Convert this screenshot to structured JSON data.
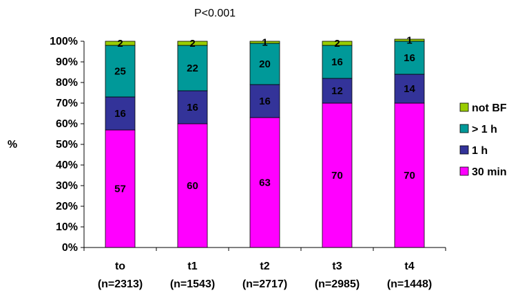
{
  "chart_data": {
    "type": "bar",
    "stacked": true,
    "title": "P<0.001",
    "ylabel": "%",
    "xlabel": "",
    "ylim": [
      0,
      100
    ],
    "yticks": [
      "0%",
      "10%",
      "20%",
      "30%",
      "40%",
      "50%",
      "60%",
      "70%",
      "80%",
      "90%",
      "100%"
    ],
    "categories": [
      "to",
      "t1",
      "t2",
      "t3",
      "t4"
    ],
    "category_notes": [
      "(n=2313)",
      "(n=1543)",
      "(n=2717)",
      "(n=2985)",
      "(n=1448)"
    ],
    "series": [
      {
        "name": "30 min",
        "color": "#ff00ff",
        "values": [
          57,
          60,
          63,
          70,
          70
        ]
      },
      {
        "name": "1 h",
        "color": "#333399",
        "values": [
          16,
          16,
          16,
          12,
          14
        ]
      },
      {
        "name": "> 1 h",
        "color": "#009999",
        "values": [
          25,
          22,
          20,
          16,
          16
        ]
      },
      {
        "name": "not BF",
        "color": "#99cc00",
        "values": [
          2,
          2,
          1,
          2,
          1
        ]
      }
    ],
    "legend_order": [
      "not BF",
      "> 1 h",
      "1 h",
      "30 min"
    ],
    "legend_position": "right",
    "grid": false
  }
}
